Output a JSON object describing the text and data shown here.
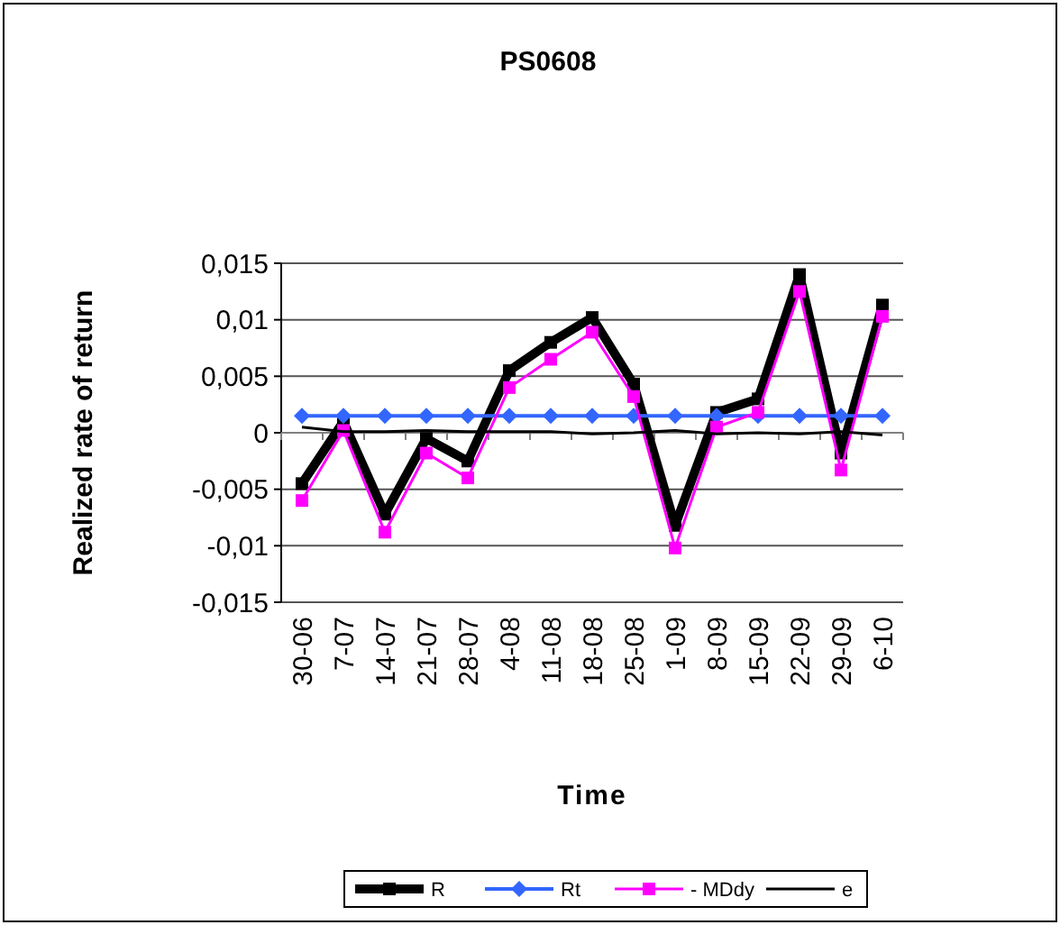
{
  "chart_data": {
    "type": "line",
    "title": "PS0608",
    "xlabel": "Time",
    "ylabel": "Realized rate of return",
    "categories": [
      "30-06",
      "7-07",
      "14-07",
      "21-07",
      "28-07",
      "4-08",
      "11-08",
      "18-08",
      "25-08",
      "1-09",
      "8-09",
      "15-09",
      "22-09",
      "29-09",
      "6-10"
    ],
    "series": [
      {
        "name": "R",
        "color": "#000000",
        "marker": "square",
        "values": [
          -0.0045,
          0.001,
          -0.0072,
          -0.0005,
          -0.0025,
          0.0055,
          0.008,
          0.0102,
          0.0043,
          -0.0082,
          0.0018,
          0.003,
          0.014,
          -0.0018,
          0.0113
        ]
      },
      {
        "name": "Rt",
        "color": "#3366ff",
        "marker": "diamond",
        "values": [
          0.0015,
          0.0015,
          0.0015,
          0.0015,
          0.0015,
          0.0015,
          0.0015,
          0.0015,
          0.0015,
          0.0015,
          0.0015,
          0.0015,
          0.0015,
          0.0015,
          0.0015
        ]
      },
      {
        "name": "- MDdy",
        "color": "#ff00ff",
        "marker": "square",
        "values": [
          -0.006,
          0.0002,
          -0.0088,
          -0.0018,
          -0.004,
          0.004,
          0.0065,
          0.0089,
          0.0032,
          -0.0102,
          0.0005,
          0.0018,
          0.0125,
          -0.0033,
          0.0103
        ]
      },
      {
        "name": "e",
        "color": "#000000",
        "marker": "none",
        "values": [
          0.0005,
          0.0001,
          0.0001,
          0.0002,
          0.0001,
          0.0001,
          0.0001,
          -0.0001,
          0,
          0.0002,
          -0.0001,
          0,
          -0.0001,
          0.0001,
          -0.0002
        ]
      }
    ],
    "ylim": [
      -0.015,
      0.015
    ],
    "yticks": [
      {
        "value": -0.015,
        "label": "-0,015"
      },
      {
        "value": -0.01,
        "label": "-0,01"
      },
      {
        "value": -0.005,
        "label": "-0,005"
      },
      {
        "value": 0,
        "label": "0"
      },
      {
        "value": 0.005,
        "label": "0,005"
      },
      {
        "value": 0.01,
        "label": "0,01"
      },
      {
        "value": 0.015,
        "label": "0,015"
      }
    ],
    "grid": "y",
    "legend": "bottom",
    "line_style": "solid"
  }
}
